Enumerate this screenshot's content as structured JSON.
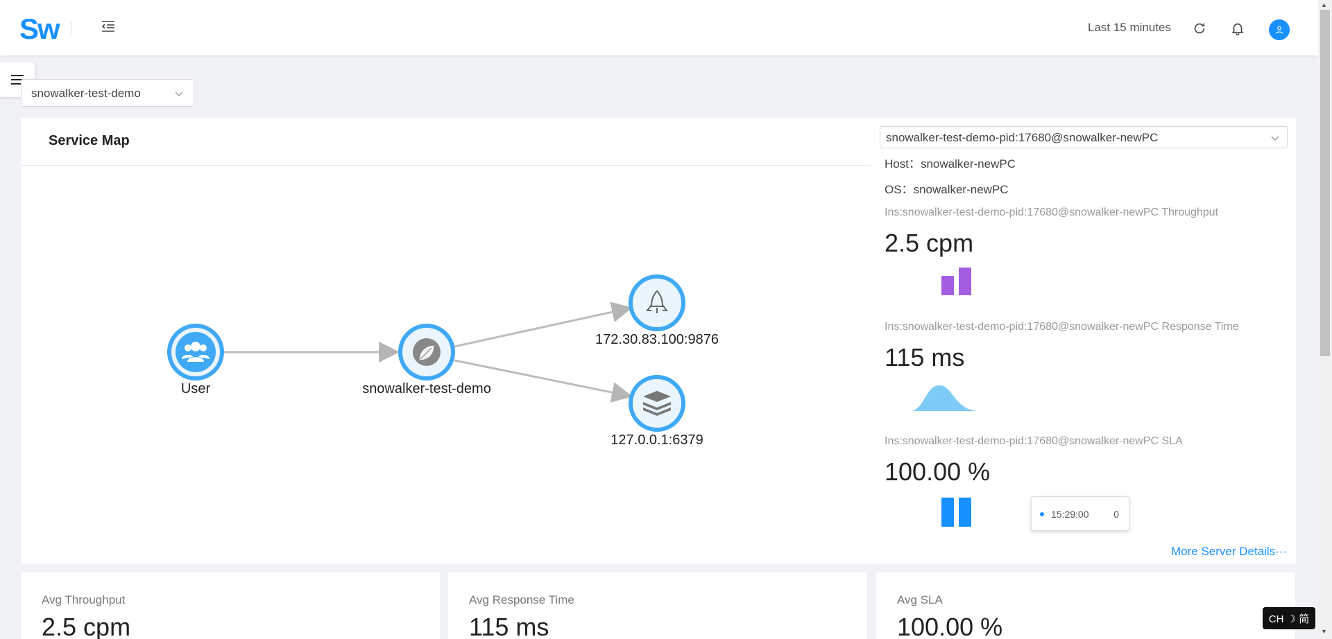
{
  "header": {
    "logo": "Sw",
    "time_range": "Last 15 minutes"
  },
  "service_select": {
    "value": "snowalker-test-demo"
  },
  "service_map": {
    "title": "Service Map",
    "nodes": [
      {
        "label": "User",
        "icon": "users-icon"
      },
      {
        "label": "snowalker-test-demo",
        "icon": "spring-leaf-icon"
      },
      {
        "label": "172.30.83.100:9876",
        "icon": "rocket-icon"
      },
      {
        "label": "127.0.0.1:6379",
        "icon": "redis-stack-icon"
      }
    ]
  },
  "instance_panel": {
    "instance_select": "snowalker-test-demo-pid:17680@snowalker-newPC",
    "host_label": "Host：",
    "host_value": "snowalker-newPC",
    "os_label": "OS：",
    "os_value": "snowalker-newPC",
    "throughput_label": "Ins:snowalker-test-demo-pid:17680@snowalker-newPC Throughput",
    "throughput_value": "2.5 cpm",
    "response_label": "Ins:snowalker-test-demo-pid:17680@snowalker-newPC Response Time",
    "response_value": "115 ms",
    "sla_label": "Ins:snowalker-test-demo-pid:17680@snowalker-newPC SLA",
    "sla_value": "100.00 %",
    "more_link": "More Server Details···",
    "tooltip_time": "15:29:00",
    "tooltip_value": "0"
  },
  "stats": {
    "throughput_label": "Avg Throughput",
    "throughput_value": "2.5 cpm",
    "response_label": "Avg Response Time",
    "response_value": "115 ms",
    "sla_label": "Avg SLA",
    "sla_value": "100.00 %"
  },
  "ime": {
    "label": "CH ☽ 简"
  },
  "colors": {
    "accent": "#1890ff",
    "node_ring": "#3fa9f5",
    "throughput_bar": "#a35ee0",
    "response_area": "#7fcbf7",
    "sla_bar": "#1890ff"
  }
}
